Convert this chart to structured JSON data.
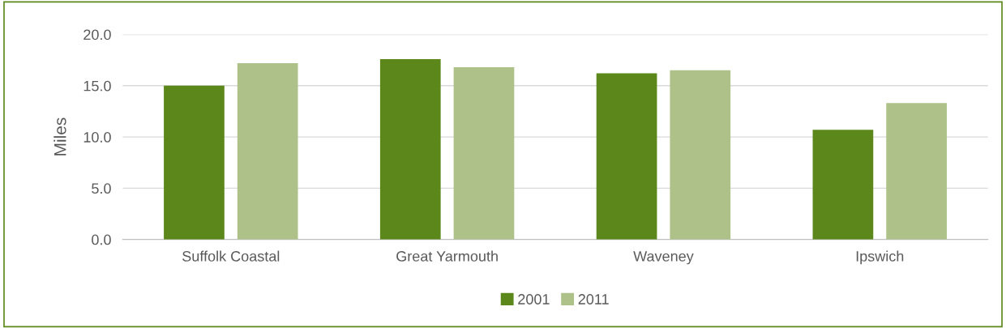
{
  "chart_data": {
    "type": "bar",
    "ylabel": "Miles",
    "categories": [
      "Suffolk Coastal",
      "Great Yarmouth",
      "Waveney",
      "Ipswich"
    ],
    "series": [
      {
        "name": "2001",
        "color": "#5b871b",
        "values": [
          15.0,
          17.6,
          16.2,
          10.7
        ]
      },
      {
        "name": "2011",
        "color": "#adc188",
        "values": [
          17.2,
          16.8,
          16.5,
          13.3
        ]
      }
    ],
    "ylim": [
      0,
      20
    ],
    "yticks": [
      {
        "value": 0,
        "label": "0.0"
      },
      {
        "value": 5,
        "label": "5.0"
      },
      {
        "value": 10,
        "label": "10.0"
      },
      {
        "value": 15,
        "label": "15.0"
      },
      {
        "value": 20,
        "label": "20.0"
      }
    ],
    "grid": "y",
    "legend": "bottom"
  }
}
